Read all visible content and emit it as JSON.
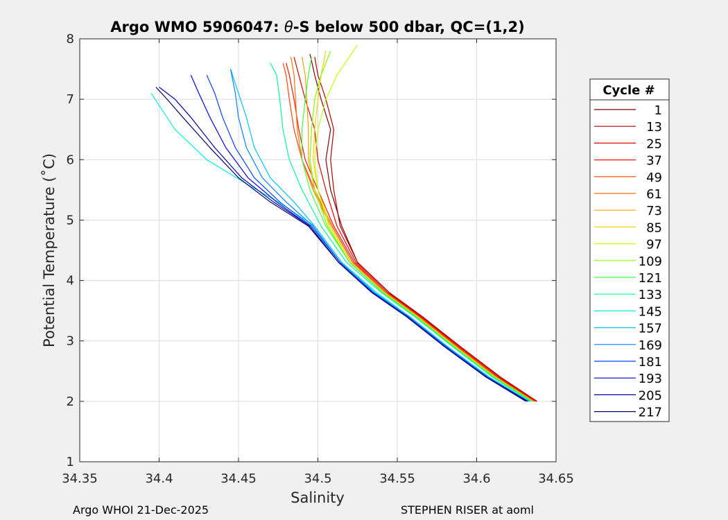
{
  "chart_data": {
    "type": "line",
    "title_prefix": "Argo WMO 5906047: ",
    "title_symbol": "θ",
    "title_suffix": "-S below 500 dbar,  QC=(1,2)",
    "xlabel": "Salinity",
    "ylabel": "Potential Temperature (˚C)",
    "xlim": [
      34.35,
      34.65
    ],
    "ylim": [
      1,
      8
    ],
    "xticks": [
      "34.35",
      "34.4",
      "34.45",
      "34.5",
      "34.55",
      "34.6",
      "34.65"
    ],
    "yticks": [
      "1",
      "2",
      "3",
      "4",
      "5",
      "6",
      "7",
      "8"
    ],
    "grid": true,
    "legend_title": "Cycle #",
    "legend_position": "outside-right",
    "series": [
      {
        "name": "1",
        "color": "#800000",
        "x": [
          34.638,
          34.615,
          34.59,
          34.565,
          34.545,
          34.525,
          34.515,
          34.508,
          34.505,
          34.508,
          34.502,
          34.498,
          34.495
        ],
        "y": [
          2.0,
          2.4,
          2.9,
          3.4,
          3.8,
          4.3,
          4.9,
          5.5,
          6.0,
          6.5,
          7.0,
          7.4,
          7.75
        ]
      },
      {
        "name": "13",
        "color": "#B00000",
        "x": [
          34.638,
          34.615,
          34.59,
          34.566,
          34.545,
          34.525,
          34.514,
          34.51,
          34.508,
          34.51,
          34.505,
          34.5,
          34.498
        ],
        "y": [
          2.0,
          2.4,
          2.9,
          3.4,
          3.8,
          4.3,
          4.9,
          5.5,
          6.0,
          6.5,
          7.0,
          7.4,
          7.7
        ]
      },
      {
        "name": "25",
        "color": "#E00000",
        "x": [
          34.637,
          34.614,
          34.589,
          34.565,
          34.544,
          34.524,
          34.512,
          34.505,
          34.5,
          34.498,
          34.492,
          34.488,
          34.485
        ],
        "y": [
          2.0,
          2.4,
          2.9,
          3.4,
          3.8,
          4.3,
          4.9,
          5.5,
          6.0,
          6.5,
          7.0,
          7.4,
          7.7
        ]
      },
      {
        "name": "37",
        "color": "#FF1000",
        "x": [
          34.637,
          34.613,
          34.588,
          34.564,
          34.543,
          34.523,
          34.51,
          34.5,
          34.492,
          34.488,
          34.485,
          34.482,
          34.48
        ],
        "y": [
          2.0,
          2.4,
          2.9,
          3.4,
          3.8,
          4.3,
          4.9,
          5.5,
          6.0,
          6.5,
          7.0,
          7.4,
          7.6
        ]
      },
      {
        "name": "49",
        "color": "#FF4000",
        "x": [
          34.636,
          34.613,
          34.588,
          34.564,
          34.543,
          34.522,
          34.509,
          34.498,
          34.49,
          34.485,
          34.482,
          34.48,
          34.478
        ],
        "y": [
          2.0,
          2.4,
          2.9,
          3.4,
          3.8,
          4.3,
          4.9,
          5.5,
          6.0,
          6.5,
          7.0,
          7.4,
          7.6
        ]
      },
      {
        "name": "61",
        "color": "#FF7000",
        "x": [
          34.636,
          34.612,
          34.587,
          34.563,
          34.542,
          34.521,
          34.508,
          34.497,
          34.49,
          34.487,
          34.486,
          34.485,
          34.483
        ],
        "y": [
          2.0,
          2.4,
          2.9,
          3.4,
          3.8,
          4.3,
          4.9,
          5.5,
          6.0,
          6.5,
          7.0,
          7.4,
          7.7
        ]
      },
      {
        "name": "73",
        "color": "#FFA000",
        "x": [
          34.636,
          34.612,
          34.587,
          34.563,
          34.542,
          34.521,
          34.508,
          34.498,
          34.494,
          34.494,
          34.493,
          34.492,
          34.49
        ],
        "y": [
          2.0,
          2.4,
          2.9,
          3.4,
          3.8,
          4.3,
          4.9,
          5.5,
          6.0,
          6.5,
          7.0,
          7.4,
          7.7
        ]
      },
      {
        "name": "85",
        "color": "#FFD000",
        "x": [
          34.635,
          34.612,
          34.587,
          34.563,
          34.542,
          34.521,
          34.508,
          34.5,
          34.497,
          34.498,
          34.5,
          34.502,
          34.505
        ],
        "y": [
          2.0,
          2.4,
          2.9,
          3.4,
          3.8,
          4.3,
          4.9,
          5.5,
          6.0,
          6.5,
          7.0,
          7.4,
          7.8
        ]
      },
      {
        "name": "97",
        "color": "#C0FF00",
        "x": [
          34.635,
          34.611,
          34.586,
          34.562,
          34.541,
          34.52,
          34.507,
          34.5,
          34.498,
          34.5,
          34.505,
          34.512,
          34.525
        ],
        "y": [
          2.0,
          2.4,
          2.9,
          3.4,
          3.8,
          4.3,
          4.9,
          5.5,
          6.0,
          6.5,
          7.0,
          7.4,
          7.9
        ]
      },
      {
        "name": "109",
        "color": "#80FF00",
        "x": [
          34.635,
          34.611,
          34.586,
          34.562,
          34.541,
          34.52,
          34.506,
          34.498,
          34.495,
          34.496,
          34.498,
          34.502,
          34.508
        ],
        "y": [
          2.0,
          2.4,
          2.9,
          3.4,
          3.8,
          4.3,
          4.9,
          5.5,
          6.0,
          6.5,
          7.0,
          7.4,
          7.8
        ]
      },
      {
        "name": "121",
        "color": "#40FF40",
        "x": [
          34.635,
          34.611,
          34.586,
          34.562,
          34.541,
          34.52,
          34.505,
          34.495,
          34.49,
          34.49,
          34.492,
          34.494,
          34.496
        ],
        "y": [
          2.0,
          2.4,
          2.9,
          3.4,
          3.8,
          4.3,
          4.9,
          5.5,
          6.0,
          6.5,
          7.0,
          7.4,
          7.7
        ]
      },
      {
        "name": "133",
        "color": "#00FF90",
        "x": [
          34.634,
          34.61,
          34.585,
          34.561,
          34.54,
          34.518,
          34.502,
          34.49,
          34.482,
          34.478,
          34.476,
          34.474,
          34.47
        ],
        "y": [
          2.0,
          2.4,
          2.9,
          3.4,
          3.8,
          4.3,
          4.9,
          5.5,
          6.0,
          6.5,
          7.0,
          7.4,
          7.6
        ]
      },
      {
        "name": "145",
        "color": "#00F0E0",
        "x": [
          34.633,
          34.608,
          34.582,
          34.558,
          34.537,
          34.515,
          34.498,
          34.475,
          34.455,
          34.43,
          34.41,
          34.4,
          34.395
        ],
        "y": [
          2.0,
          2.4,
          2.9,
          3.4,
          3.8,
          4.3,
          4.9,
          5.3,
          5.6,
          6.0,
          6.5,
          6.9,
          7.1
        ]
      },
      {
        "name": "157",
        "color": "#00C0FF",
        "x": [
          34.633,
          34.608,
          34.582,
          34.558,
          34.536,
          34.515,
          34.498,
          34.485,
          34.47,
          34.46,
          34.455,
          34.45,
          34.445
        ],
        "y": [
          2.0,
          2.4,
          2.9,
          3.4,
          3.8,
          4.3,
          4.9,
          5.3,
          5.7,
          6.2,
          6.7,
          7.1,
          7.5
        ]
      },
      {
        "name": "169",
        "color": "#0080FF",
        "x": [
          34.633,
          34.607,
          34.581,
          34.557,
          34.535,
          34.514,
          34.497,
          34.48,
          34.465,
          34.455,
          34.45,
          34.448,
          34.445
        ],
        "y": [
          2.0,
          2.4,
          2.9,
          3.4,
          3.8,
          4.3,
          4.9,
          5.3,
          5.7,
          6.2,
          6.7,
          7.1,
          7.5
        ]
      },
      {
        "name": "181",
        "color": "#0040FF",
        "x": [
          34.632,
          34.607,
          34.581,
          34.557,
          34.535,
          34.514,
          34.496,
          34.476,
          34.46,
          34.448,
          34.44,
          34.435,
          34.43
        ],
        "y": [
          2.0,
          2.4,
          2.9,
          3.4,
          3.8,
          4.3,
          4.9,
          5.3,
          5.7,
          6.2,
          6.7,
          7.1,
          7.4
        ]
      },
      {
        "name": "193",
        "color": "#0000E0",
        "x": [
          34.632,
          34.606,
          34.58,
          34.556,
          34.534,
          34.513,
          34.495,
          34.474,
          34.456,
          34.442,
          34.432,
          34.425,
          34.42
        ],
        "y": [
          2.0,
          2.4,
          2.9,
          3.4,
          3.8,
          4.3,
          4.9,
          5.3,
          5.7,
          6.2,
          6.7,
          7.1,
          7.4
        ]
      },
      {
        "name": "205",
        "color": "#0000A0",
        "x": [
          34.632,
          34.606,
          34.58,
          34.556,
          34.534,
          34.513,
          34.495,
          34.472,
          34.452,
          34.435,
          34.42,
          34.41,
          34.4
        ],
        "y": [
          2.0,
          2.4,
          2.9,
          3.4,
          3.8,
          4.3,
          4.9,
          5.3,
          5.7,
          6.2,
          6.7,
          7.0,
          7.2
        ]
      },
      {
        "name": "217",
        "color": "#000070",
        "x": [
          34.631,
          34.606,
          34.58,
          34.556,
          34.534,
          34.513,
          34.494,
          34.47,
          34.45,
          34.432,
          34.415,
          34.405,
          34.398
        ],
        "y": [
          2.0,
          2.4,
          2.9,
          3.4,
          3.8,
          4.3,
          4.9,
          5.3,
          5.7,
          6.2,
          6.7,
          7.0,
          7.2
        ]
      }
    ]
  },
  "footer": {
    "left": "Argo WHOI 21-Dec-2025",
    "right": "STEPHEN RISER at aoml"
  }
}
